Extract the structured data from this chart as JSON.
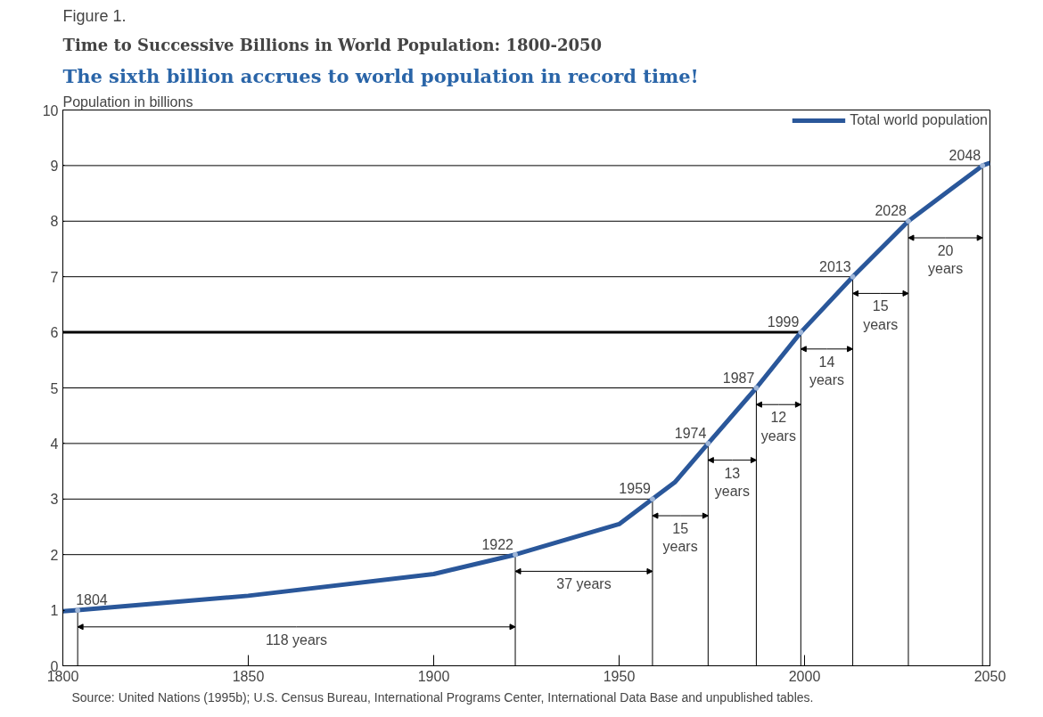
{
  "chart_data": {
    "type": "line",
    "title": "Time to Successive Billions in World Population:  1800-2050",
    "subtitle": "The sixth billion accrues to world population in record time!",
    "ylabel": "Population in billions",
    "x": [
      1800,
      1804,
      1850,
      1900,
      1922,
      1950,
      1959,
      1965,
      1974,
      1987,
      1999,
      2013,
      2028,
      2040,
      2048,
      2050
    ],
    "series": [
      {
        "name": "Total world population",
        "color": "#2a579a",
        "values": [
          0.98,
          1,
          1.26,
          1.65,
          2,
          2.55,
          3,
          3.3,
          4,
          5,
          6,
          7,
          8,
          8.6,
          9,
          9.05
        ]
      }
    ],
    "xlim": [
      1800,
      2050
    ],
    "ylim": [
      0,
      10
    ],
    "xticks": [
      1800,
      1850,
      1900,
      1950,
      2000,
      2050
    ],
    "yticks": [
      0,
      1,
      2,
      3,
      4,
      5,
      6,
      7,
      8,
      9,
      10
    ],
    "grid": "y",
    "legend": "top right",
    "marker": "none",
    "line_style": "solid",
    "ref_lines": [
      {
        "axis": "y",
        "value": 6,
        "color": "#000000"
      }
    ],
    "annotations": [
      "Figure 1.",
      "Source:  United Nations (1995b); U.S. Census Bureau, International Programs Center, International Data Base and unpublished tables.",
      {
        "text": "1804",
        "x": 1804,
        "y": 1
      },
      {
        "text": "1922",
        "x": 1922,
        "y": 2
      },
      {
        "text": "1959",
        "x": 1959,
        "y": 3
      },
      {
        "text": "1974",
        "x": 1974,
        "y": 4
      },
      {
        "text": "1987",
        "x": 1987,
        "y": 5
      },
      {
        "text": "1999",
        "x": 1999,
        "y": 6
      },
      {
        "text": "2013",
        "x": 2013,
        "y": 7
      },
      {
        "text": "2028",
        "x": 2028,
        "y": 8
      },
      {
        "text": "2048",
        "x": 2048,
        "y": 9
      },
      "118 years",
      "37 years",
      "15\nyears",
      "13\nyears",
      "12\nyears",
      "14\nyears",
      "15\nyears",
      "20\nyears"
    ]
  }
}
